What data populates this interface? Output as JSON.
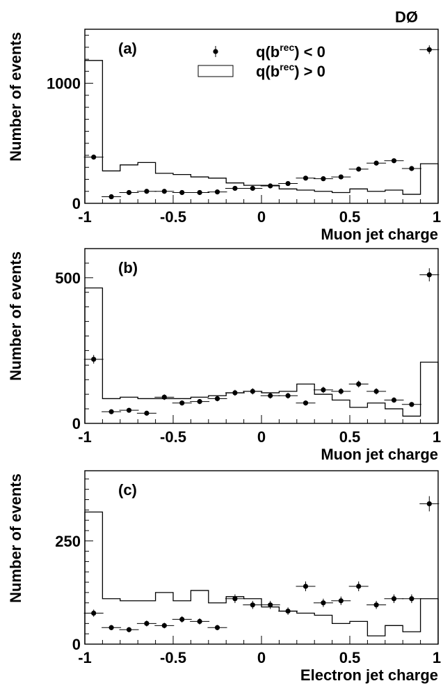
{
  "experiment_label": "DØ",
  "legend": {
    "points": "q(b^rec) < 0",
    "hist": "q(b^rec) > 0",
    "points_base": "q(b",
    "points_sup": "rec",
    "points_tail": ") < 0",
    "hist_base": "q(b",
    "hist_sup": "rec",
    "hist_tail": ") > 0"
  },
  "chart_data": [
    {
      "type": "histogram",
      "panel_label": "(a)",
      "xlabel": "Muon jet charge",
      "ylabel": "Number of events",
      "xlim": [
        -1,
        1
      ],
      "ylim": [
        0,
        1450
      ],
      "x_ticks": [
        -1,
        -0.5,
        0,
        0.5,
        1
      ],
      "x_tick_labels": [
        "-1",
        "-0.5",
        "0",
        "0.5",
        "1"
      ],
      "y_ticks": [
        0,
        1000
      ],
      "y_tick_labels": [
        "0",
        "1000"
      ],
      "bin_centers": [
        -0.95,
        -0.85,
        -0.75,
        -0.65,
        -0.55,
        -0.45,
        -0.35,
        -0.25,
        -0.15,
        -0.05,
        0.05,
        0.15,
        0.25,
        0.35,
        0.45,
        0.55,
        0.65,
        0.75,
        0.85,
        0.95
      ],
      "series": [
        {
          "name": "q(b^rec) > 0",
          "style": "histogram",
          "values": [
            1190,
            270,
            320,
            340,
            250,
            240,
            220,
            210,
            170,
            150,
            150,
            120,
            110,
            100,
            90,
            120,
            100,
            110,
            75,
            330
          ]
        },
        {
          "name": "q(b^rec) < 0",
          "style": "points",
          "values": [
            385,
            55,
            90,
            100,
            100,
            90,
            90,
            95,
            125,
            125,
            145,
            165,
            210,
            205,
            220,
            285,
            335,
            355,
            290,
            1280
          ]
        }
      ]
    },
    {
      "type": "histogram",
      "panel_label": "(b)",
      "xlabel": "Muon jet charge",
      "ylabel": "Number of events",
      "xlim": [
        -1,
        1
      ],
      "ylim": [
        0,
        600
      ],
      "x_ticks": [
        -1,
        -0.5,
        0,
        0.5,
        1
      ],
      "x_tick_labels": [
        "-1",
        "-0.5",
        "0",
        "0.5",
        "1"
      ],
      "y_ticks": [
        0,
        500
      ],
      "y_tick_labels": [
        "0",
        "500"
      ],
      "bin_centers": [
        -0.95,
        -0.85,
        -0.75,
        -0.65,
        -0.55,
        -0.45,
        -0.35,
        -0.25,
        -0.15,
        -0.05,
        0.05,
        0.15,
        0.25,
        0.35,
        0.45,
        0.55,
        0.65,
        0.75,
        0.85,
        0.95
      ],
      "series": [
        {
          "name": "q(b^rec) > 0",
          "style": "histogram",
          "values": [
            465,
            85,
            90,
            85,
            85,
            85,
            90,
            95,
            105,
            110,
            105,
            110,
            135,
            100,
            80,
            55,
            70,
            50,
            25,
            210
          ]
        },
        {
          "name": "q(b^rec) < 0",
          "style": "points",
          "values": [
            220,
            40,
            45,
            35,
            90,
            70,
            75,
            85,
            105,
            110,
            95,
            95,
            70,
            115,
            110,
            135,
            110,
            80,
            65,
            510
          ]
        }
      ]
    },
    {
      "type": "histogram",
      "panel_label": "(c)",
      "xlabel": "Electron jet charge",
      "ylabel": "Number of events",
      "xlim": [
        -1,
        1
      ],
      "ylim": [
        0,
        420
      ],
      "x_ticks": [
        -1,
        -0.5,
        0,
        0.5,
        1
      ],
      "x_tick_labels": [
        "-1",
        "-0.5",
        "0",
        "0.5",
        "1"
      ],
      "y_ticks": [
        0,
        250
      ],
      "y_tick_labels": [
        "0",
        "250"
      ],
      "bin_centers": [
        -0.95,
        -0.85,
        -0.75,
        -0.65,
        -0.55,
        -0.45,
        -0.35,
        -0.25,
        -0.15,
        -0.05,
        0.05,
        0.15,
        0.25,
        0.35,
        0.45,
        0.55,
        0.65,
        0.75,
        0.85,
        0.95
      ],
      "series": [
        {
          "name": "q(b^rec) > 0",
          "style": "histogram",
          "values": [
            320,
            110,
            105,
            105,
            125,
            105,
            130,
            100,
            115,
            110,
            90,
            80,
            75,
            70,
            50,
            55,
            20,
            45,
            30,
            110
          ]
        },
        {
          "name": "q(b^rec) < 0",
          "style": "points",
          "values": [
            75,
            40,
            35,
            50,
            45,
            60,
            55,
            40,
            110,
            95,
            95,
            80,
            140,
            100,
            105,
            140,
            95,
            110,
            110,
            340
          ]
        }
      ]
    }
  ]
}
